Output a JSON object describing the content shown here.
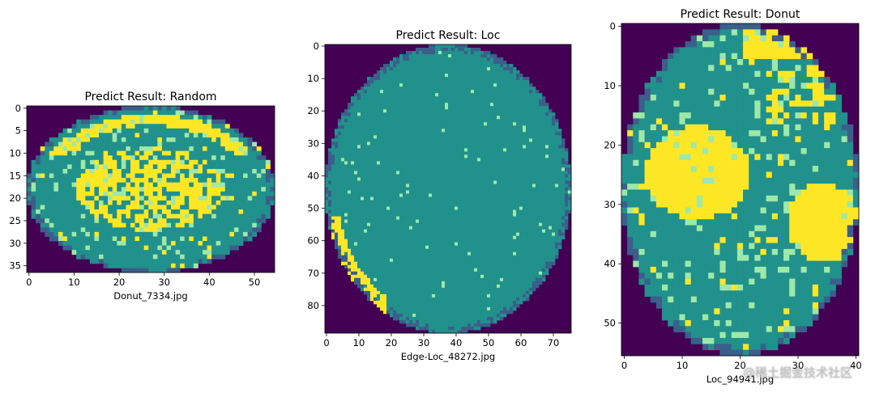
{
  "chart_data": [
    {
      "type": "heatmap",
      "title": "Predict Result: Random",
      "xlabel": "Donut_7334.jpg",
      "ylabel": "",
      "shape": "ellipse",
      "image_width": 55,
      "image_height": 37,
      "xlim": [
        -0.5,
        54.5
      ],
      "ylim": [
        36.5,
        -0.5
      ],
      "xticks": [
        0,
        10,
        20,
        30,
        40,
        50
      ],
      "yticks": [
        0,
        5,
        10,
        15,
        20,
        25,
        30,
        35
      ],
      "colormap": [
        "#440154",
        "#21918c",
        "#fde725"
      ],
      "legend": "none"
    },
    {
      "type": "heatmap",
      "title": "Predict Result: Loc",
      "xlabel": "Edge-Loc_48272.jpg",
      "ylabel": "",
      "shape": "ellipse",
      "image_width": 76,
      "image_height": 89,
      "xlim": [
        -0.5,
        75.5
      ],
      "ylim": [
        88.5,
        -0.5
      ],
      "xticks": [
        0,
        10,
        20,
        30,
        40,
        50,
        60,
        70
      ],
      "yticks": [
        0,
        10,
        20,
        30,
        40,
        50,
        60,
        70,
        80
      ],
      "colormap": [
        "#440154",
        "#21918c",
        "#fde725"
      ],
      "legend": "none"
    },
    {
      "type": "heatmap",
      "title": "Predict Result: Donut",
      "xlabel": "Loc_94941.jpg",
      "ylabel": "",
      "shape": "ellipse",
      "image_width": 41,
      "image_height": 56,
      "xlim": [
        -0.5,
        40.5
      ],
      "ylim": [
        55.5,
        -0.5
      ],
      "xticks": [
        0,
        10,
        20,
        30,
        40
      ],
      "yticks": [
        0,
        10,
        20,
        30,
        40,
        50
      ],
      "colormap": [
        "#440154",
        "#21918c",
        "#fde725"
      ],
      "legend": "none"
    }
  ],
  "watermark": "@稀土掘金技术社区"
}
